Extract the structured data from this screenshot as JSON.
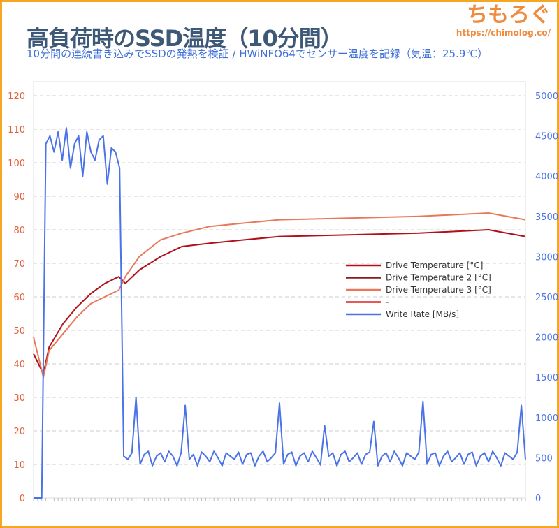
{
  "header": {
    "title": "高負荷時のSSD温度（10分間）",
    "subtitle": "10分間の連続書き込みでSSDの発熱を検証 / HWiNFO64でセンサー温度を記録（気温：25.9℃）",
    "logo_text": "ちもろぐ",
    "logo_url": "https://chimolog.co/"
  },
  "colors": {
    "frame": "#f5a623",
    "title": "#3e5878",
    "subtitle": "#3f6fd8",
    "left_axis": "#e0603a",
    "right_axis": "#4a73e8"
  },
  "chart_data": {
    "type": "line",
    "x_unit": "seconds",
    "xlim": [
      0,
      600
    ],
    "y_left": {
      "ylim": [
        0,
        120
      ],
      "ticks": [
        0,
        10,
        20,
        30,
        40,
        50,
        60,
        70,
        80,
        90,
        100,
        110,
        120
      ]
    },
    "y_right": {
      "ylim": [
        0,
        5000
      ],
      "ticks": [
        0,
        500,
        1000,
        1500,
        2000,
        2500,
        3000,
        3500,
        4000,
        4500,
        5000
      ]
    },
    "grid": "horizontal dashed",
    "legend_position": "center-right",
    "series": [
      {
        "name": "Drive Temperature [°C]",
        "axis": "left",
        "color": "#b0101a",
        "x": [
          0,
          12,
          19,
          36,
          53,
          70,
          87,
          104,
          112,
          129,
          155,
          181,
          215,
          257,
          300,
          385,
          470,
          555,
          600
        ],
        "y": [
          43,
          37,
          45,
          52,
          57,
          61,
          64,
          66,
          64,
          68,
          72,
          75,
          76,
          77,
          78,
          78.5,
          79,
          80,
          78
        ]
      },
      {
        "name": "Drive Temperature 2 [°C]",
        "axis": "left",
        "color": "#8b1a1a",
        "x": [],
        "y": []
      },
      {
        "name": "Drive Temperature 3 [°C]",
        "axis": "left",
        "color": "#e8785a",
        "x": [
          0,
          12,
          19,
          36,
          53,
          70,
          87,
          104,
          112,
          129,
          155,
          181,
          215,
          257,
          300,
          385,
          470,
          555,
          600
        ],
        "y": [
          48,
          36,
          44,
          49,
          54,
          58,
          60,
          62,
          66,
          72,
          77,
          79,
          81,
          82,
          83,
          83.5,
          84,
          85,
          83
        ]
      },
      {
        "name": "-",
        "axis": "left",
        "color": "#e02020",
        "x": [],
        "y": []
      },
      {
        "name": "Write Rate [MB/s]",
        "axis": "right",
        "color": "#4a73e8",
        "x_step": 5,
        "y": [
          0,
          0,
          0,
          4400,
          4500,
          4300,
          4550,
          4200,
          4600,
          4100,
          4400,
          4500,
          4000,
          4550,
          4300,
          4200,
          4450,
          4500,
          3900,
          4350,
          4300,
          4100,
          520,
          480,
          560,
          1250,
          420,
          540,
          580,
          400,
          520,
          560,
          450,
          580,
          520,
          400,
          560,
          1150,
          480,
          540,
          400,
          570,
          520,
          450,
          580,
          500,
          400,
          560,
          520,
          480,
          570,
          420,
          540,
          560,
          400,
          520,
          580,
          450,
          500,
          560,
          1180,
          420,
          540,
          570,
          400,
          520,
          560,
          450,
          580,
          500,
          410,
          900,
          520,
          560,
          400,
          540,
          580,
          450,
          500,
          560,
          420,
          540,
          570,
          950,
          400,
          520,
          560,
          450,
          580,
          500,
          400,
          560,
          520,
          480,
          570,
          1200,
          420,
          540,
          560,
          400,
          520,
          580,
          450,
          500,
          560,
          420,
          540,
          570,
          400,
          520,
          560,
          450,
          580,
          500,
          400,
          560,
          520,
          480,
          570,
          1150,
          480
        ]
      }
    ]
  }
}
